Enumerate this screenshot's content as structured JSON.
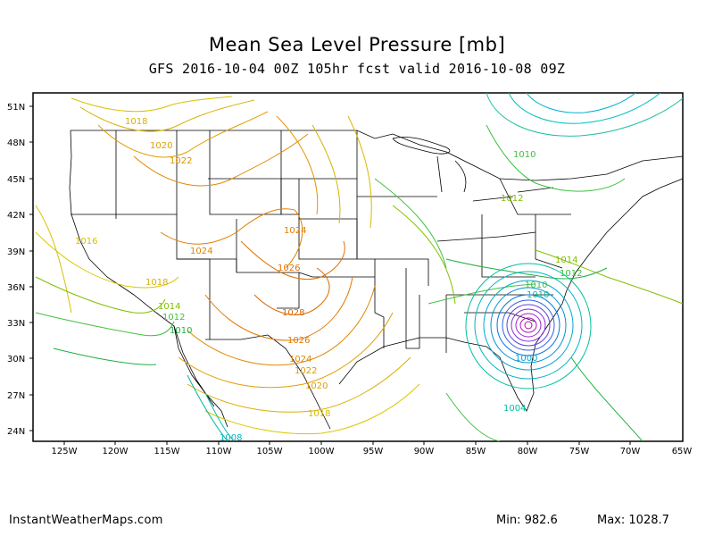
{
  "title": "Mean Sea Level Pressure [mb]",
  "subtitle": "GFS 2016-10-04 00Z 105hr fcst valid 2016-10-08 09Z",
  "footer": {
    "site": "InstantWeatherMaps.com",
    "min_label": "Min:",
    "min_value": "982.6",
    "max_label": "Max:",
    "max_value": "1028.7"
  },
  "map": {
    "lon_range": [
      -128,
      -65
    ],
    "lat_range": [
      23,
      52
    ],
    "lat_ticks": [
      "51N",
      "48N",
      "45N",
      "42N",
      "39N",
      "36N",
      "33N",
      "30N",
      "27N",
      "24N"
    ],
    "lon_ticks": [
      "125W",
      "120W",
      "115W",
      "110W",
      "105W",
      "100W",
      "95W",
      "90W",
      "85W",
      "80W",
      "75W",
      "70W",
      "65W"
    ],
    "contour_labels": [
      "1018",
      "1020",
      "1022",
      "1016",
      "1024",
      "1018",
      "1014",
      "1012",
      "1010",
      "1024",
      "1026",
      "1028",
      "1026",
      "1024",
      "1022",
      "1020",
      "1018",
      "1008",
      "1010",
      "1012",
      "1010",
      "1014",
      "1012",
      "1010",
      "1000",
      "1004"
    ],
    "colors": {
      "low": "#a000c8",
      "mid_low": "#00b4c8",
      "neutral": "#40c040",
      "mid_high": "#c8c800",
      "high": "#e08000"
    }
  }
}
